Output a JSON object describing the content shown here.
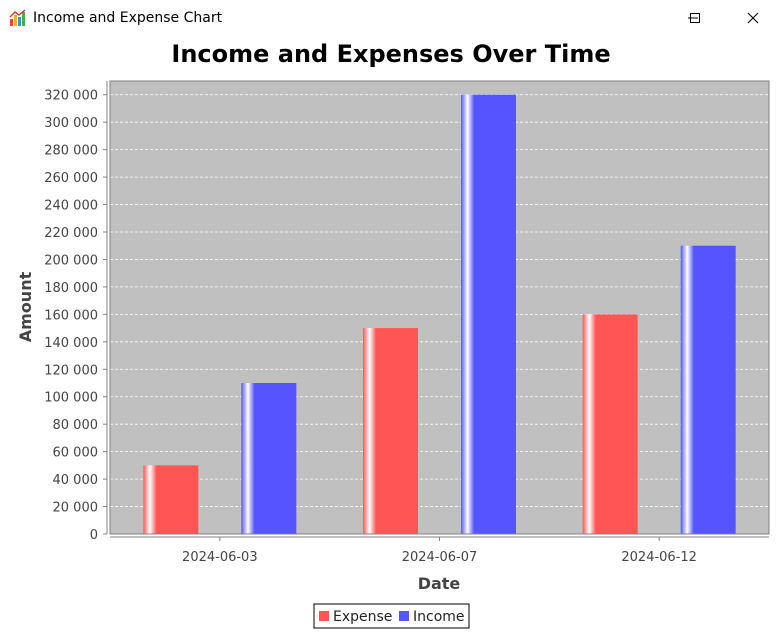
{
  "window": {
    "title": "Income and Expense Chart",
    "icons": {
      "app": "bar-chart-app-icon",
      "minimize": "minimize-icon",
      "maximize": "maximize-icon",
      "close": "close-icon"
    }
  },
  "chart_data": {
    "type": "bar",
    "title": "Income and Expenses Over Time",
    "xlabel": "Date",
    "ylabel": "Amount",
    "categories": [
      "2024-06-03",
      "2024-06-07",
      "2024-06-12"
    ],
    "series": [
      {
        "name": "Expense",
        "color": "#ff5555",
        "values": [
          50000,
          150000,
          160000
        ]
      },
      {
        "name": "Income",
        "color": "#5555ff",
        "values": [
          110000,
          320000,
          210000
        ]
      }
    ],
    "ylim": [
      0,
      330000
    ],
    "yticks": [
      0,
      20000,
      40000,
      60000,
      80000,
      100000,
      120000,
      140000,
      160000,
      180000,
      200000,
      220000,
      240000,
      260000,
      280000,
      300000,
      320000
    ],
    "ytick_labels": [
      "0",
      "20 000",
      "40 000",
      "60 000",
      "80 000",
      "100 000",
      "120 000",
      "140 000",
      "160 000",
      "180 000",
      "200 000",
      "220 000",
      "240 000",
      "260 000",
      "280 000",
      "300 000",
      "320 000"
    ],
    "grid": true,
    "legend": "bottom-center",
    "plot_background": "#c0c0c0"
  }
}
